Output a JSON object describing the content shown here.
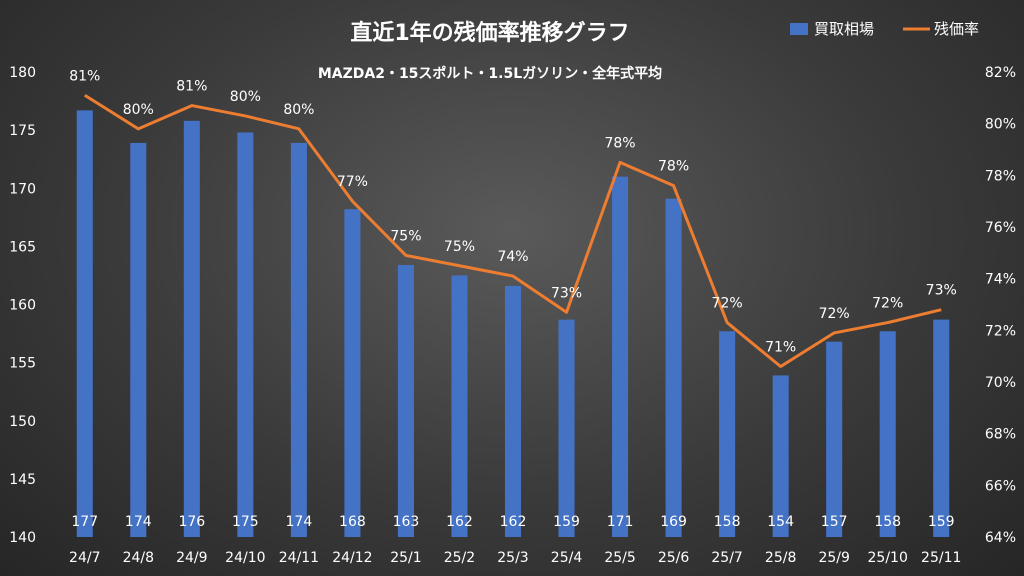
{
  "chart_data": {
    "type": "bar+line",
    "title": "直近1年の残価率推移グラフ",
    "subtitle": "MAZDA2・15スポルト・1.5Lガソリン・全年式平均",
    "categories": [
      "24/7",
      "24/8",
      "24/9",
      "24/10",
      "24/11",
      "24/12",
      "25/1",
      "25/2",
      "25/3",
      "25/4",
      "25/5",
      "25/6",
      "25/7",
      "25/8",
      "25/9",
      "25/10",
      "25/11"
    ],
    "series": [
      {
        "name": "買取相場",
        "type": "bar",
        "axis": "left",
        "values": [
          176.7,
          173.9,
          175.8,
          174.8,
          173.9,
          168.2,
          163.4,
          162.5,
          161.6,
          158.7,
          171.0,
          169.1,
          157.7,
          153.9,
          156.8,
          157.7,
          158.7
        ],
        "labels": [
          "177",
          "174",
          "176",
          "175",
          "174",
          "168",
          "163",
          "162",
          "162",
          "159",
          "171",
          "169",
          "158",
          "154",
          "157",
          "158",
          "159"
        ],
        "color": "#4472C4"
      },
      {
        "name": "残価率",
        "type": "line",
        "axis": "right",
        "values": [
          81.1,
          79.8,
          80.7,
          80.3,
          79.8,
          77.0,
          74.9,
          74.5,
          74.1,
          72.7,
          78.5,
          77.6,
          72.3,
          70.6,
          71.9,
          72.3,
          72.8
        ],
        "labels": [
          "81%",
          "80%",
          "81%",
          "80%",
          "80%",
          "77%",
          "75%",
          "75%",
          "74%",
          "73%",
          "78%",
          "78%",
          "72%",
          "71%",
          "72%",
          "72%",
          "73%"
        ],
        "color": "#ED7D31"
      }
    ],
    "y_left": {
      "range": [
        140,
        180
      ],
      "ticks": [
        "140",
        "145",
        "150",
        "155",
        "160",
        "165",
        "170",
        "175",
        "180"
      ]
    },
    "y_right": {
      "range": [
        64,
        82
      ],
      "ticks": [
        "64%",
        "66%",
        "68%",
        "70%",
        "72%",
        "74%",
        "76%",
        "78%",
        "80%",
        "82%"
      ]
    },
    "legend_position": "top-right",
    "grid": false
  }
}
